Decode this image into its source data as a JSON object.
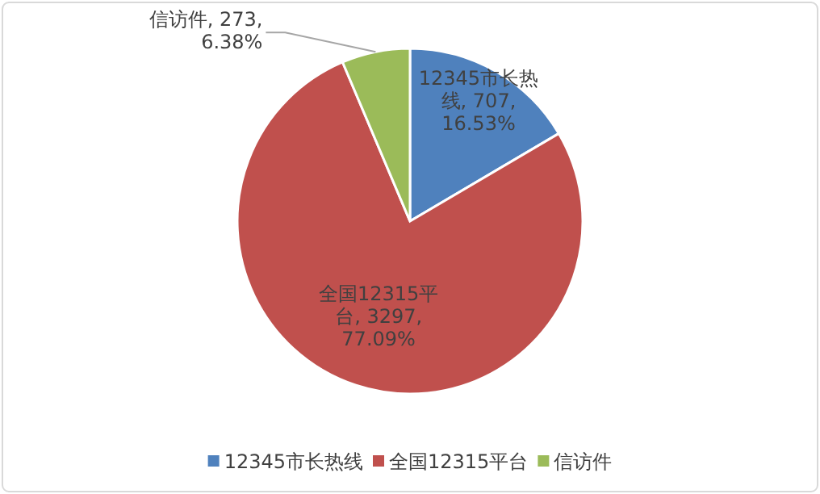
{
  "chart_data": {
    "type": "pie",
    "categories": [
      "12345市长热线",
      "全国12315平台",
      "信访件"
    ],
    "values": [
      707,
      3297,
      273
    ],
    "colors": [
      "#4f81bd",
      "#c0504d",
      "#9bbb59"
    ],
    "value_labels": [
      "12345市长热线, 707, 16.53%",
      "全国12315平台, 3297, 77.09%",
      "信访件, 273, 6.38%"
    ],
    "legend": "bottom"
  }
}
